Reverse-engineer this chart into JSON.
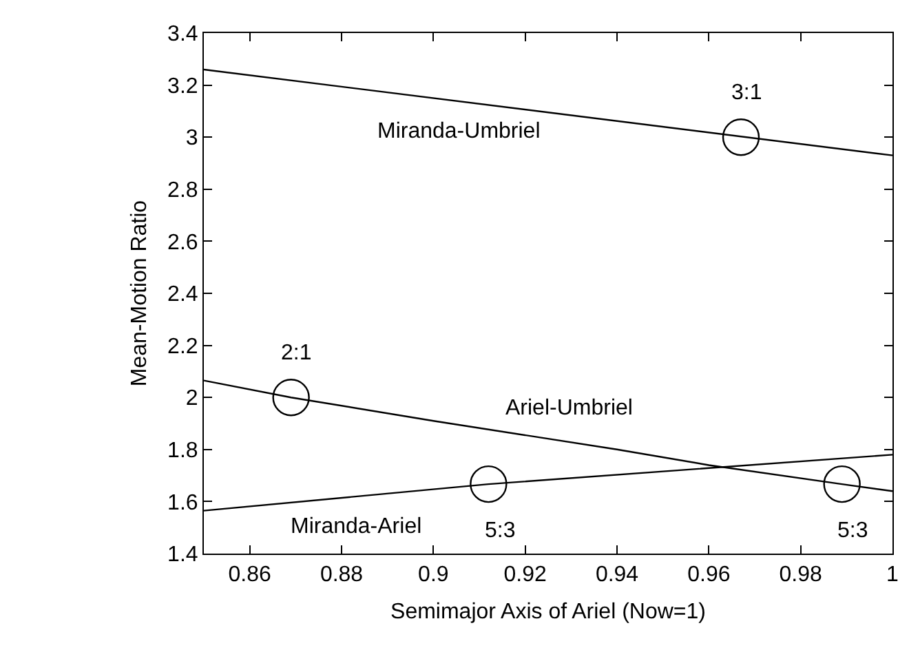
{
  "chart_data": {
    "type": "line",
    "xlabel": "Semimajor Axis of Ariel (Now=1)",
    "ylabel": "Mean-Motion Ratio",
    "xlim": [
      0.85,
      1
    ],
    "xticks": [
      0.86,
      0.88,
      0.9,
      0.92,
      0.94,
      0.96,
      0.98,
      1
    ],
    "ylim": [
      1.4,
      3.4
    ],
    "yticks": [
      1.4,
      1.6,
      1.8,
      2,
      2.2,
      2.4,
      2.6,
      2.8,
      3,
      3.2,
      3.4
    ],
    "grid": false,
    "legend": false,
    "line_style": "solid",
    "marker": "none",
    "series": [
      {
        "name": "Miranda-Umbriel",
        "color": "#000000",
        "x": [
          0.85,
          1
        ],
        "values": [
          3.26,
          2.93
        ]
      },
      {
        "name": "Ariel-Umbriel",
        "color": "#000000",
        "x": [
          0.85,
          0.869,
          0.9,
          0.94,
          0.96,
          0.989,
          1
        ],
        "values": [
          2.065,
          2.0,
          1.91,
          1.8,
          1.74,
          1.667,
          1.64
        ]
      },
      {
        "name": "Miranda-Ariel",
        "color": "#000000",
        "x": [
          0.85,
          0.912,
          1
        ],
        "values": [
          1.565,
          1.667,
          1.78
        ]
      },
      {
        "type": "scatter",
        "marker": "circle",
        "color": "#000000",
        "x": [
          0.869,
          0.912,
          0.967,
          0.989
        ],
        "values": [
          2.0,
          1.667,
          3.0,
          1.667
        ]
      }
    ],
    "annotations": [
      {
        "text": "2:1",
        "x": 0.869,
        "y": 2.0
      },
      {
        "text": "5:3",
        "x": 0.912,
        "y": 1.667
      },
      {
        "text": "3:1",
        "x": 0.967,
        "y": 3.0
      },
      {
        "text": "5:3",
        "x": 0.989,
        "y": 1.667
      }
    ]
  }
}
